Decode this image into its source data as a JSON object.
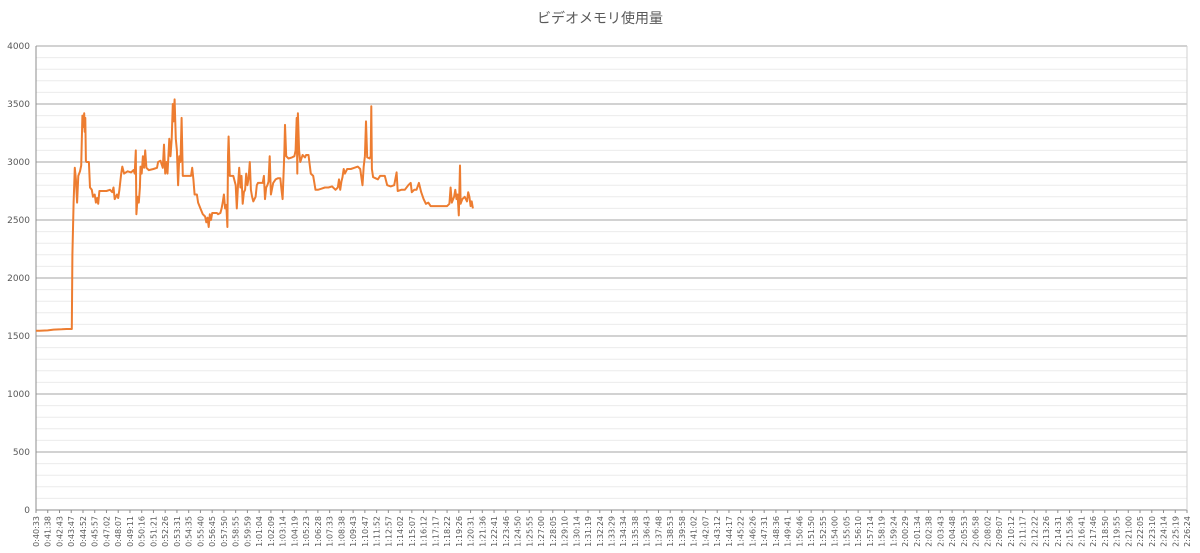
{
  "chart_data": {
    "type": "line",
    "title": "ビデオメモリ使用量",
    "xlabel": "",
    "ylabel": "",
    "ylim": [
      0,
      4000
    ],
    "yticks": [
      0,
      500,
      1000,
      1500,
      2000,
      2500,
      3000,
      3500,
      4000
    ],
    "grid": "horizontal",
    "legend": "none",
    "series_color": "#ED7D31",
    "x_tick_labels": [
      "0:40:33",
      "0:41:38",
      "0:42:43",
      "0:43:47",
      "0:44:52",
      "0:45:57",
      "0:47:02",
      "0:48:07",
      "0:49:11",
      "0:50:16",
      "0:51:21",
      "0:52:26",
      "0:53:31",
      "0:54:35",
      "0:55:40",
      "0:56:45",
      "0:57:50",
      "0:58:55",
      "0:59:59",
      "1:01:04",
      "1:02:09",
      "1:03:14",
      "1:04:19",
      "1:05:23",
      "1:06:28",
      "1:07:33",
      "1:08:38",
      "1:09:43",
      "1:10:47",
      "1:11:52",
      "1:12:57",
      "1:14:02",
      "1:15:07",
      "1:16:12",
      "1:17:17",
      "1:18:22",
      "1:19:26",
      "1:20:31",
      "1:21:36",
      "1:22:41",
      "1:23:46",
      "1:24:50",
      "1:25:55",
      "1:27:00",
      "1:28:05",
      "1:29:10",
      "1:30:14",
      "1:31:19",
      "1:32:24",
      "1:33:29",
      "1:34:34",
      "1:35:38",
      "1:36:43",
      "1:37:48",
      "1:38:53",
      "1:39:58",
      "1:41:02",
      "1:42:07",
      "1:43:12",
      "1:44:17",
      "1:45:22",
      "1:46:26",
      "1:47:31",
      "1:48:36",
      "1:49:41",
      "1:50:46",
      "1:51:50",
      "1:52:55",
      "1:54:00",
      "1:55:05",
      "1:56:10",
      "1:57:14",
      "1:58:19",
      "1:59:24",
      "2:00:29",
      "2:01:34",
      "2:02:38",
      "2:03:43",
      "2:04:48",
      "2:05:53",
      "2:06:58",
      "2:08:02",
      "2:09:07",
      "2:10:12",
      "2:11:17",
      "2:12:22",
      "2:13:26",
      "2:14:31",
      "2:15:36",
      "2:16:41",
      "2:17:46",
      "2:18:50",
      "2:19:55",
      "2:21:00",
      "2:22:05",
      "2:23:10",
      "2:24:14",
      "2:25:19",
      "2:26:24"
    ],
    "points": [
      [
        0,
        1545
      ],
      [
        0.3,
        1545
      ],
      [
        1.0,
        1548
      ],
      [
        1.5,
        1555
      ],
      [
        2.2,
        1558
      ],
      [
        2.6,
        1560
      ],
      [
        3.05,
        1560
      ],
      [
        3.1,
        2200
      ],
      [
        3.2,
        2650
      ],
      [
        3.3,
        2950
      ],
      [
        3.4,
        2850
      ],
      [
        3.5,
        2650
      ],
      [
        3.6,
        2880
      ],
      [
        3.75,
        2920
      ],
      [
        3.85,
        2970
      ],
      [
        3.95,
        3400
      ],
      [
        4.0,
        3300
      ],
      [
        4.1,
        3420
      ],
      [
        4.15,
        3260
      ],
      [
        4.2,
        3380
      ],
      [
        4.25,
        3010
      ],
      [
        4.3,
        3000
      ],
      [
        4.5,
        3000
      ],
      [
        4.6,
        2780
      ],
      [
        4.75,
        2760
      ],
      [
        4.85,
        2700
      ],
      [
        5.0,
        2720
      ],
      [
        5.1,
        2650
      ],
      [
        5.2,
        2690
      ],
      [
        5.3,
        2640
      ],
      [
        5.4,
        2750
      ],
      [
        5.7,
        2750
      ],
      [
        6.0,
        2750
      ],
      [
        6.3,
        2760
      ],
      [
        6.5,
        2740
      ],
      [
        6.6,
        2780
      ],
      [
        6.7,
        2680
      ],
      [
        6.8,
        2700
      ],
      [
        6.9,
        2720
      ],
      [
        7.0,
        2690
      ],
      [
        7.1,
        2760
      ],
      [
        7.25,
        2900
      ],
      [
        7.35,
        2960
      ],
      [
        7.5,
        2900
      ],
      [
        7.8,
        2920
      ],
      [
        8.1,
        2910
      ],
      [
        8.3,
        2930
      ],
      [
        8.4,
        2900
      ],
      [
        8.5,
        3100
      ],
      [
        8.55,
        2550
      ],
      [
        8.65,
        2700
      ],
      [
        8.75,
        2650
      ],
      [
        8.85,
        2780
      ],
      [
        8.9,
        2960
      ],
      [
        9.0,
        2900
      ],
      [
        9.1,
        3050
      ],
      [
        9.2,
        2950
      ],
      [
        9.3,
        3100
      ],
      [
        9.4,
        2950
      ],
      [
        9.6,
        2930
      ],
      [
        10.0,
        2940
      ],
      [
        10.3,
        2950
      ],
      [
        10.4,
        3000
      ],
      [
        10.6,
        3010
      ],
      [
        10.8,
        2950
      ],
      [
        10.9,
        3150
      ],
      [
        11.0,
        2900
      ],
      [
        11.1,
        3000
      ],
      [
        11.2,
        2900
      ],
      [
        11.35,
        3200
      ],
      [
        11.45,
        3050
      ],
      [
        11.55,
        3200
      ],
      [
        11.65,
        3500
      ],
      [
        11.7,
        3350
      ],
      [
        11.8,
        3540
      ],
      [
        11.9,
        3200
      ],
      [
        12.0,
        3100
      ],
      [
        12.1,
        2800
      ],
      [
        12.2,
        3050
      ],
      [
        12.3,
        3000
      ],
      [
        12.4,
        3380
      ],
      [
        12.5,
        2880
      ],
      [
        12.9,
        2880
      ],
      [
        13.2,
        2880
      ],
      [
        13.3,
        2950
      ],
      [
        13.4,
        2850
      ],
      [
        13.5,
        2720
      ],
      [
        13.7,
        2720
      ],
      [
        13.8,
        2650
      ],
      [
        14.0,
        2600
      ],
      [
        14.2,
        2550
      ],
      [
        14.4,
        2530
      ],
      [
        14.5,
        2480
      ],
      [
        14.6,
        2520
      ],
      [
        14.7,
        2440
      ],
      [
        14.8,
        2550
      ],
      [
        14.9,
        2500
      ],
      [
        15.0,
        2560
      ],
      [
        15.2,
        2560
      ],
      [
        15.4,
        2560
      ],
      [
        15.5,
        2550
      ],
      [
        15.7,
        2560
      ],
      [
        15.8,
        2600
      ],
      [
        15.9,
        2650
      ],
      [
        16.0,
        2720
      ],
      [
        16.1,
        2600
      ],
      [
        16.2,
        2630
      ],
      [
        16.3,
        2440
      ],
      [
        16.35,
        3050
      ],
      [
        16.4,
        3220
      ],
      [
        16.5,
        2880
      ],
      [
        16.8,
        2880
      ],
      [
        17.0,
        2800
      ],
      [
        17.1,
        2600
      ],
      [
        17.2,
        2800
      ],
      [
        17.3,
        2950
      ],
      [
        17.4,
        2780
      ],
      [
        17.5,
        2880
      ],
      [
        17.6,
        2640
      ],
      [
        17.7,
        2740
      ],
      [
        17.8,
        2760
      ],
      [
        17.9,
        2900
      ],
      [
        18.0,
        2800
      ],
      [
        18.1,
        2860
      ],
      [
        18.2,
        3000
      ],
      [
        18.3,
        2760
      ],
      [
        18.4,
        2700
      ],
      [
        18.5,
        2660
      ],
      [
        18.7,
        2700
      ],
      [
        18.8,
        2800
      ],
      [
        18.9,
        2820
      ],
      [
        19.1,
        2820
      ],
      [
        19.3,
        2820
      ],
      [
        19.4,
        2880
      ],
      [
        19.5,
        2680
      ],
      [
        19.6,
        2780
      ],
      [
        19.7,
        2800
      ],
      [
        19.8,
        2830
      ],
      [
        19.9,
        3050
      ],
      [
        20.0,
        2720
      ],
      [
        20.2,
        2820
      ],
      [
        20.4,
        2850
      ],
      [
        20.6,
        2860
      ],
      [
        20.8,
        2860
      ],
      [
        20.9,
        2760
      ],
      [
        21.0,
        2680
      ],
      [
        21.1,
        2950
      ],
      [
        21.15,
        3100
      ],
      [
        21.2,
        3320
      ],
      [
        21.3,
        3050
      ],
      [
        21.5,
        3030
      ],
      [
        21.8,
        3040
      ],
      [
        22.0,
        3050
      ],
      [
        22.1,
        3100
      ],
      [
        22.2,
        3380
      ],
      [
        22.25,
        2900
      ],
      [
        22.3,
        3420
      ],
      [
        22.4,
        3100
      ],
      [
        22.5,
        3000
      ],
      [
        22.7,
        3060
      ],
      [
        22.9,
        3040
      ],
      [
        23.0,
        3060
      ],
      [
        23.2,
        3060
      ],
      [
        23.4,
        2900
      ],
      [
        23.6,
        2880
      ],
      [
        23.8,
        2760
      ],
      [
        24.0,
        2760
      ],
      [
        24.3,
        2770
      ],
      [
        24.6,
        2780
      ],
      [
        24.9,
        2780
      ],
      [
        25.2,
        2790
      ],
      [
        25.5,
        2760
      ],
      [
        25.7,
        2780
      ],
      [
        25.8,
        2850
      ],
      [
        25.9,
        2760
      ],
      [
        26.0,
        2830
      ],
      [
        26.1,
        2870
      ],
      [
        26.2,
        2940
      ],
      [
        26.3,
        2900
      ],
      [
        26.5,
        2940
      ],
      [
        26.8,
        2940
      ],
      [
        27.1,
        2950
      ],
      [
        27.4,
        2960
      ],
      [
        27.6,
        2940
      ],
      [
        27.8,
        2800
      ],
      [
        27.9,
        2960
      ],
      [
        28.0,
        3050
      ],
      [
        28.1,
        3350
      ],
      [
        28.2,
        3040
      ],
      [
        28.4,
        3030
      ],
      [
        28.5,
        3050
      ],
      [
        28.55,
        3480
      ],
      [
        28.6,
        2940
      ],
      [
        28.7,
        2870
      ],
      [
        28.9,
        2860
      ],
      [
        29.1,
        2850
      ],
      [
        29.3,
        2880
      ],
      [
        29.5,
        2880
      ],
      [
        29.7,
        2880
      ],
      [
        29.9,
        2800
      ],
      [
        30.2,
        2790
      ],
      [
        30.5,
        2800
      ],
      [
        30.7,
        2910
      ],
      [
        30.8,
        2750
      ],
      [
        31.1,
        2760
      ],
      [
        31.4,
        2760
      ],
      [
        31.7,
        2800
      ],
      [
        31.9,
        2820
      ],
      [
        32.0,
        2740
      ],
      [
        32.2,
        2760
      ],
      [
        32.4,
        2760
      ],
      [
        32.6,
        2820
      ],
      [
        32.8,
        2740
      ],
      [
        33.0,
        2680
      ],
      [
        33.2,
        2640
      ],
      [
        33.4,
        2650
      ],
      [
        33.6,
        2620
      ],
      [
        33.8,
        2620
      ],
      [
        34.1,
        2620
      ],
      [
        34.4,
        2620
      ],
      [
        34.7,
        2620
      ],
      [
        35.0,
        2620
      ],
      [
        35.2,
        2640
      ],
      [
        35.3,
        2780
      ],
      [
        35.4,
        2650
      ],
      [
        35.6,
        2700
      ],
      [
        35.7,
        2760
      ],
      [
        35.8,
        2680
      ],
      [
        35.9,
        2720
      ],
      [
        36.0,
        2540
      ],
      [
        36.1,
        2970
      ],
      [
        36.15,
        2640
      ],
      [
        36.3,
        2680
      ],
      [
        36.5,
        2700
      ],
      [
        36.7,
        2660
      ],
      [
        36.8,
        2740
      ],
      [
        36.9,
        2700
      ],
      [
        37.0,
        2620
      ],
      [
        37.1,
        2660
      ],
      [
        37.2,
        2600
      ]
    ]
  }
}
